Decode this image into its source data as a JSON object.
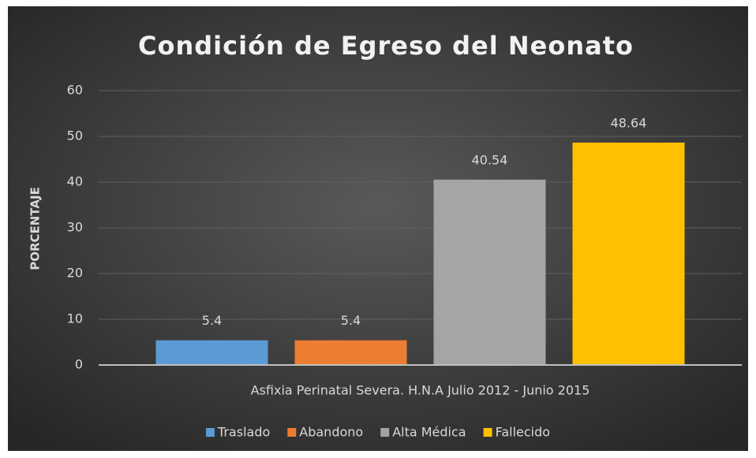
{
  "chart_data": {
    "type": "bar",
    "title": "Condición de Egreso del Neonato",
    "y_label": "PORCENTAJE",
    "categories": [
      "Asfixia Perinatal Severa. H.N.A Julio 2012 - Junio 2015"
    ],
    "series": [
      {
        "name": "Traslado",
        "color": "#5b9bd5",
        "values": [
          5.4
        ]
      },
      {
        "name": "Abandono",
        "color": "#ed7d31",
        "values": [
          5.4
        ]
      },
      {
        "name": "Alta Médica",
        "color": "#a5a5a5",
        "values": [
          40.54
        ]
      },
      {
        "name": "Fallecido",
        "color": "#ffc000",
        "values": [
          48.64
        ]
      }
    ],
    "ylim": [
      0,
      60
    ],
    "yticks": [
      0,
      10,
      20,
      30,
      40,
      50,
      60
    ],
    "grid": true
  }
}
